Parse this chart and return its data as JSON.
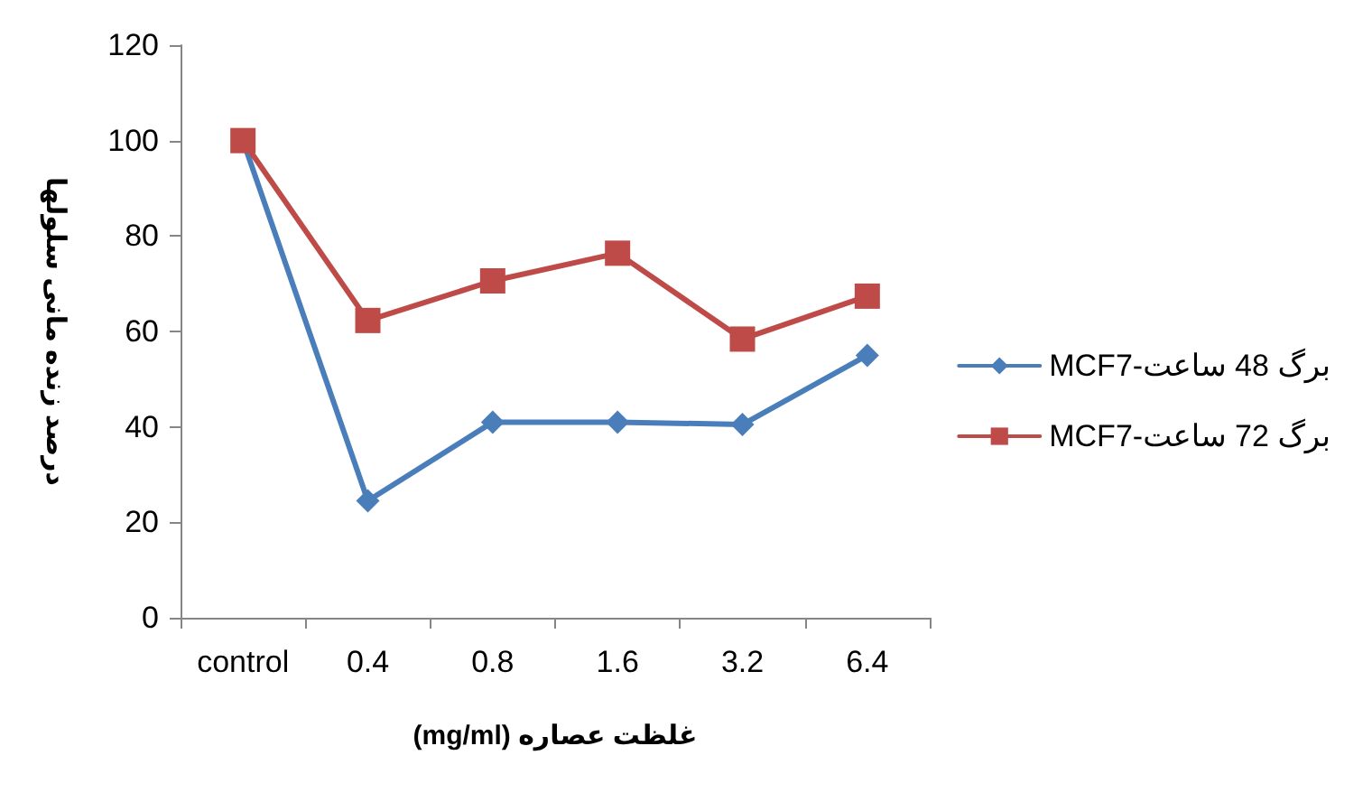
{
  "chart_data": {
    "type": "line",
    "xlabel": "(mg/ml) غلظت عصاره",
    "ylabel": "درصد زنده مانی سلولها",
    "categories": [
      "control",
      "0.4",
      "0.8",
      "1.6",
      "3.2",
      "6.4"
    ],
    "series": [
      {
        "name": "MCF7-برگ 48 ساعت",
        "color": "#4a7ebb",
        "marker": "diamond",
        "values": [
          100,
          24.5,
          41,
          41,
          40.5,
          55
        ]
      },
      {
        "name": "MCF7-برگ 72 ساعت",
        "color": "#be4b48",
        "marker": "square",
        "values": [
          100,
          62.3,
          70.6,
          76.4,
          58.4,
          67.4
        ]
      }
    ],
    "ylim": [
      0,
      120
    ],
    "yticks": [
      0,
      20,
      40,
      60,
      80,
      100,
      120
    ],
    "grid": false,
    "legend": "right",
    "line_style": "solid"
  }
}
